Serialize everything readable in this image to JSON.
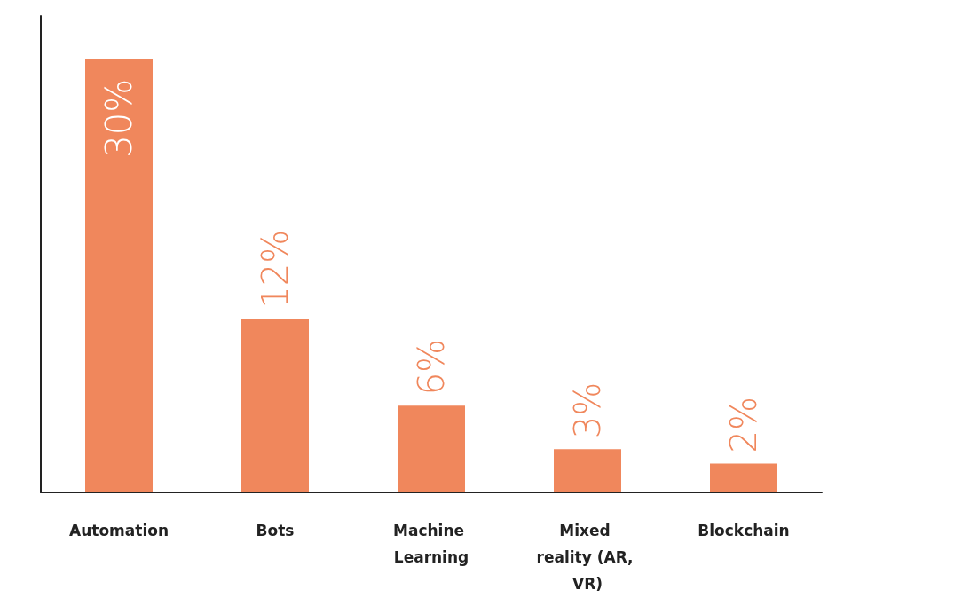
{
  "chart_data": {
    "type": "bar",
    "categories": [
      "Automation",
      "Bots",
      "Machine Learning",
      "Mixed reality (AR, VR)",
      "Blockchain"
    ],
    "values": [
      30,
      12,
      6,
      3,
      2
    ],
    "value_labels": [
      "30%",
      "12%",
      "6%",
      "3%",
      "2%"
    ],
    "color": "#f0875c",
    "ylim": [
      0,
      33
    ],
    "tick_labels": "x",
    "grid": false
  }
}
